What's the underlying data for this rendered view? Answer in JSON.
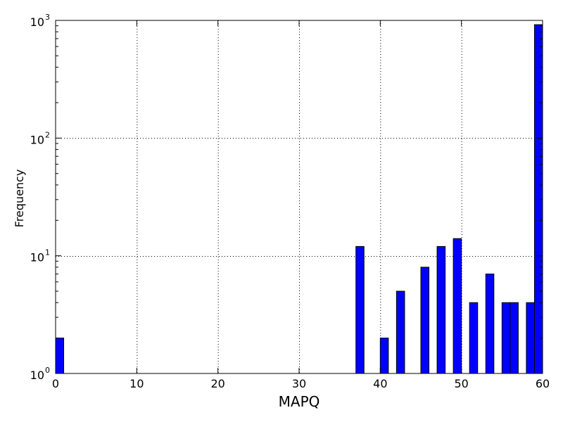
{
  "chart_data": {
    "type": "bar",
    "title": "",
    "xlabel": "MAPQ",
    "ylabel": "Frequency",
    "x_scale": "linear",
    "y_scale": "log",
    "xlim": [
      0,
      60
    ],
    "ylim": [
      1,
      1000
    ],
    "xticks": [
      0,
      10,
      20,
      30,
      40,
      50,
      60
    ],
    "xtick_labels": [
      "0",
      "10",
      "20",
      "30",
      "40",
      "50",
      "60"
    ],
    "yticks": [
      1,
      10,
      100,
      1000
    ],
    "ytick_labels": [
      {
        "base": "10",
        "exp": "0"
      },
      {
        "base": "10",
        "exp": "1"
      },
      {
        "base": "10",
        "exp": "2"
      },
      {
        "base": "10",
        "exp": "3"
      }
    ],
    "grid": true,
    "legend": "none",
    "bar_color": "#0000ff",
    "bar_edge_color": "#000000",
    "bin_width": 1.0,
    "bars": [
      {
        "x": 0,
        "value": 2
      },
      {
        "x": 37,
        "value": 12
      },
      {
        "x": 40,
        "value": 2
      },
      {
        "x": 42,
        "value": 5
      },
      {
        "x": 45,
        "value": 8
      },
      {
        "x": 47,
        "value": 12
      },
      {
        "x": 49,
        "value": 14
      },
      {
        "x": 51,
        "value": 4
      },
      {
        "x": 53,
        "value": 7
      },
      {
        "x": 55,
        "value": 4
      },
      {
        "x": 56,
        "value": 4
      },
      {
        "x": 58,
        "value": 4
      },
      {
        "x": 59,
        "value": 920
      }
    ]
  }
}
